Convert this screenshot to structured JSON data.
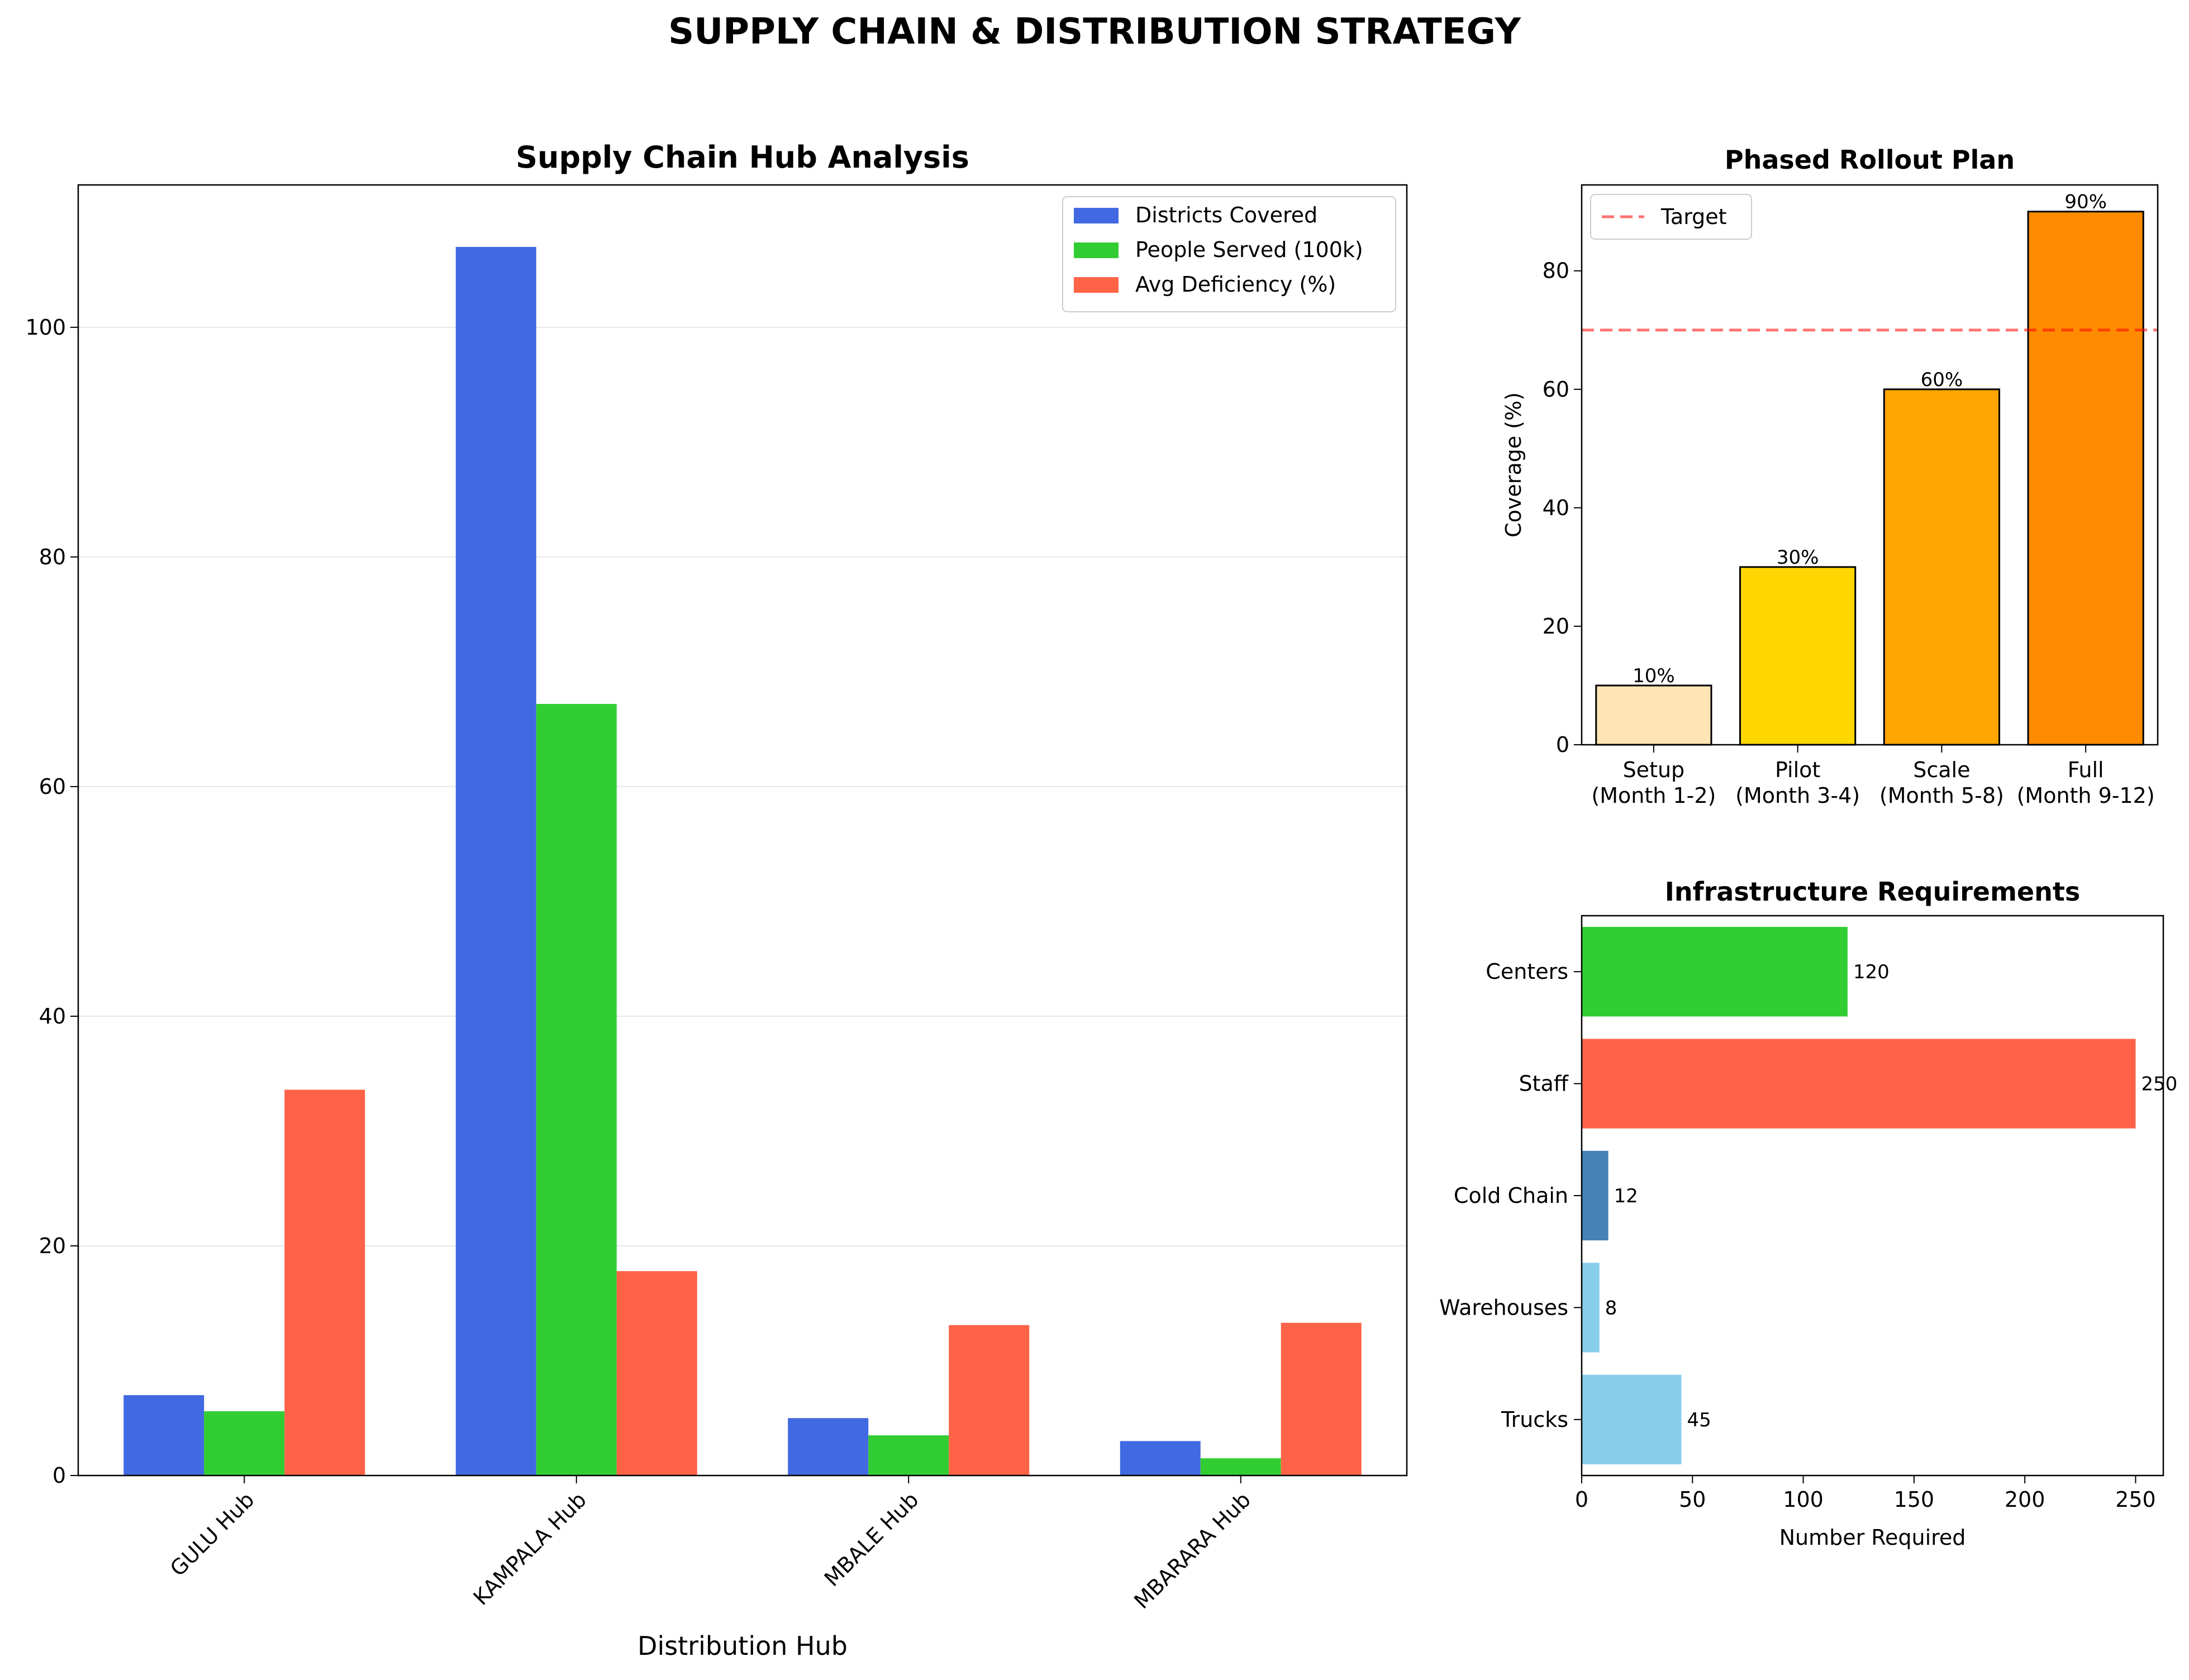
{
  "suptitle": "SUPPLY CHAIN & DISTRIBUTION STRATEGY",
  "chart_data": [
    {
      "type": "bar",
      "title": "Supply Chain Hub Analysis",
      "xlabel": "Distribution Hub",
      "ylabel": "",
      "categories": [
        "GULU Hub",
        "KAMPALA Hub",
        "MBALE Hub",
        "MBARARA Hub"
      ],
      "series": [
        {
          "name": "Districts Covered",
          "color": "#4169e1",
          "values": [
            7,
            107,
            5,
            3
          ]
        },
        {
          "name": "People Served (100k)",
          "color": "#32cd32",
          "values": [
            5.6,
            67.2,
            3.5,
            1.5
          ]
        },
        {
          "name": "Avg Deficiency (%)",
          "color": "#ff6347",
          "values": [
            33.6,
            17.8,
            13.1,
            13.3
          ]
        }
      ],
      "ylim": [
        0,
        112.4
      ],
      "yticks": [
        0,
        20,
        40,
        60,
        80,
        100
      ],
      "grid": "y",
      "legend": "top-right"
    },
    {
      "type": "bar",
      "title": "Phased Rollout Plan",
      "ylabel": "Coverage (%)",
      "categories": [
        "Setup\n(Month 1-2)",
        "Pilot\n(Month 3-4)",
        "Scale\n(Month 5-8)",
        "Full\n(Month 9-12)"
      ],
      "values": [
        10,
        30,
        60,
        90
      ],
      "data_labels": [
        "10%",
        "30%",
        "60%",
        "90%"
      ],
      "colors": [
        "#ffe4b5",
        "#ffd700",
        "#ffa500",
        "#ff8c00"
      ],
      "target": {
        "name": "Target",
        "value": 70,
        "color": "#ff0000"
      },
      "ylim": [
        0,
        94.5
      ],
      "yticks": [
        0,
        20,
        40,
        60,
        80
      ],
      "legend": "top-left"
    },
    {
      "type": "barh",
      "title": "Infrastructure Requirements",
      "xlabel": "Number Required",
      "categories": [
        "Trucks",
        "Warehouses",
        "Cold Chain",
        "Staff",
        "Centers"
      ],
      "values": [
        45,
        8,
        12,
        250,
        120
      ],
      "colors": [
        "#87ceeb",
        "#87ceeb",
        "#4682b4",
        "#ff6347",
        "#32cd32"
      ],
      "xlim": [
        0,
        262.5
      ],
      "xticks": [
        0,
        50,
        100,
        150,
        200,
        250
      ]
    }
  ]
}
